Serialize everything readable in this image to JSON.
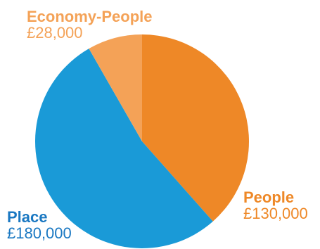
{
  "chart_data": {
    "type": "pie",
    "slices": [
      {
        "label": "People",
        "value": 130000,
        "value_text": "£130,000",
        "color": "#ee8827"
      },
      {
        "label": "Place",
        "value": 180000,
        "value_text": "£180,000",
        "color": "#1a9ad7"
      },
      {
        "label": "Economy-People",
        "value": 28000,
        "value_text": "£28,000",
        "color": "#f4a257"
      }
    ],
    "label_colors": {
      "People": "#ee8827",
      "Place": "#1a78c2",
      "Economy-People": "#f4a257"
    },
    "start_angle_deg": 0,
    "direction": "clockwise"
  }
}
